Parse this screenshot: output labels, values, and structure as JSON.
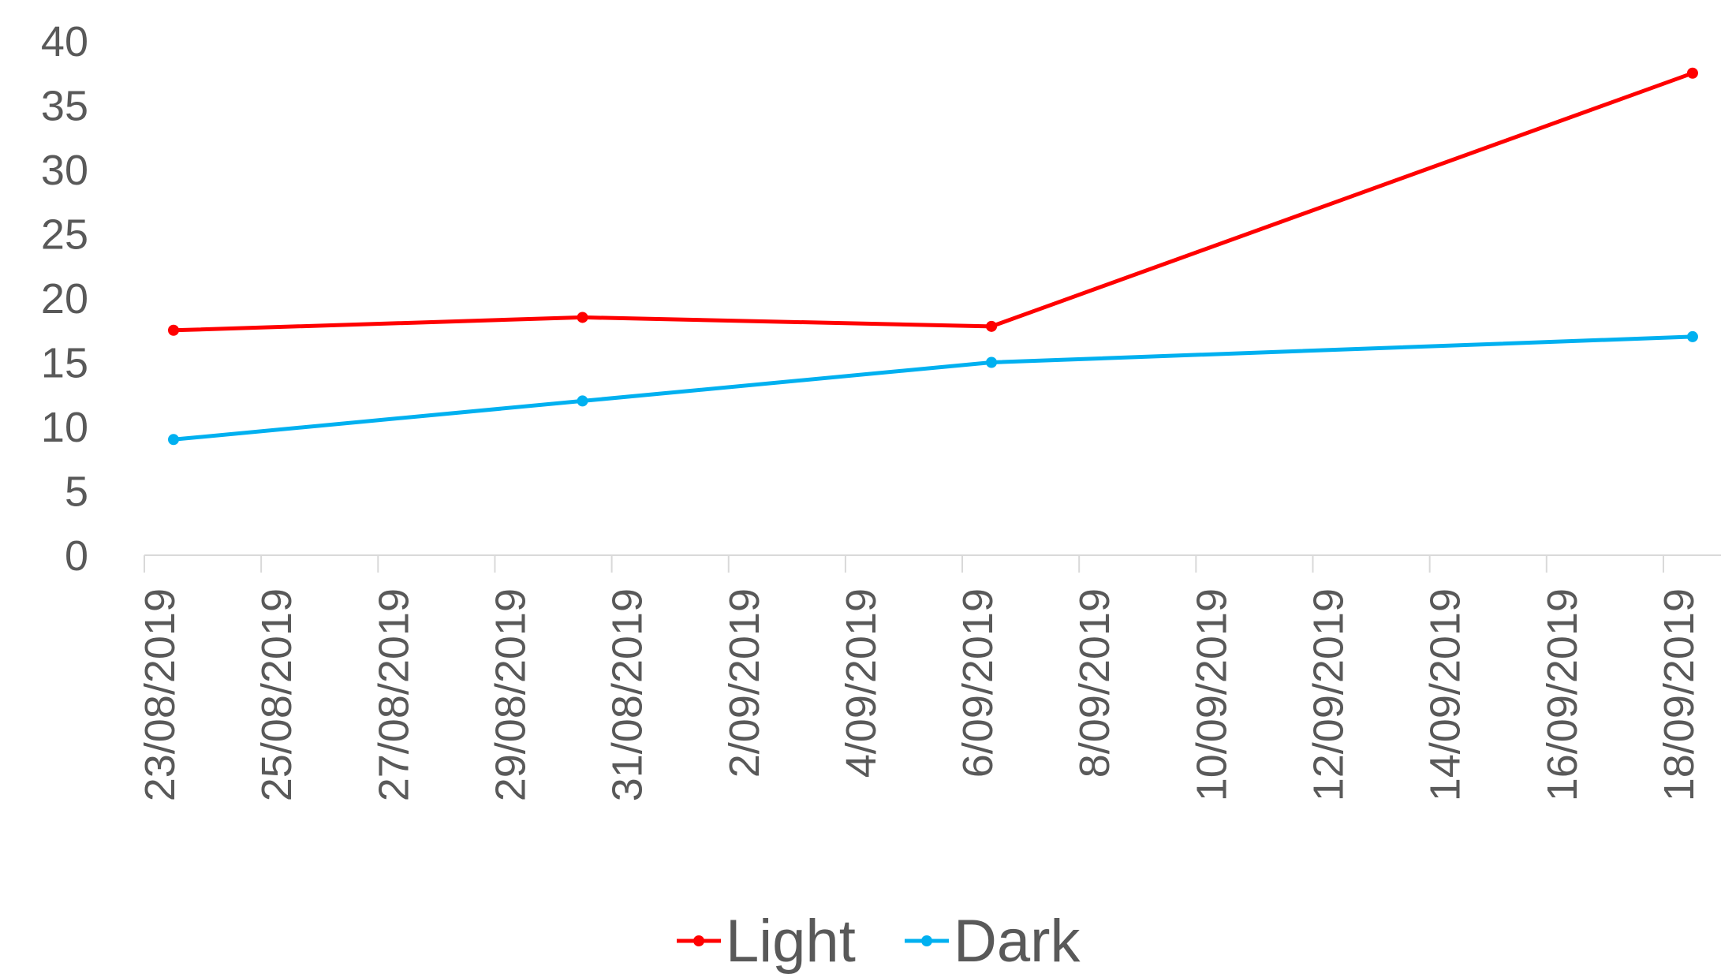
{
  "chart_data": {
    "type": "line",
    "title": "",
    "xlabel": "",
    "ylabel": "",
    "x_axis_type": "date",
    "x_tick_labels": [
      "23/08/2019",
      "25/08/2019",
      "27/08/2019",
      "29/08/2019",
      "31/08/2019",
      "2/09/2019",
      "4/09/2019",
      "6/09/2019",
      "8/09/2019",
      "10/09/2019",
      "12/09/2019",
      "14/09/2019",
      "16/09/2019",
      "18/09/2019"
    ],
    "y_tick_labels": [
      "0",
      "5",
      "10",
      "15",
      "20",
      "25",
      "30",
      "35",
      "40"
    ],
    "xlim": [
      "2019-08-23",
      "2019-09-18"
    ],
    "ylim": [
      0,
      40
    ],
    "grid": false,
    "legend_position": "bottom",
    "series": [
      {
        "name": "Light",
        "color": "#FF0000",
        "points": [
          {
            "x": "2019-08-23",
            "y": 17.5
          },
          {
            "x": "2019-08-30",
            "y": 18.5
          },
          {
            "x": "2019-09-06",
            "y": 17.8
          },
          {
            "x": "2019-09-18",
            "y": 37.5
          }
        ]
      },
      {
        "name": "Dark",
        "color": "#00B0F0",
        "points": [
          {
            "x": "2019-08-23",
            "y": 9
          },
          {
            "x": "2019-08-30",
            "y": 12
          },
          {
            "x": "2019-09-06",
            "y": 15
          },
          {
            "x": "2019-09-18",
            "y": 17
          }
        ]
      }
    ]
  }
}
